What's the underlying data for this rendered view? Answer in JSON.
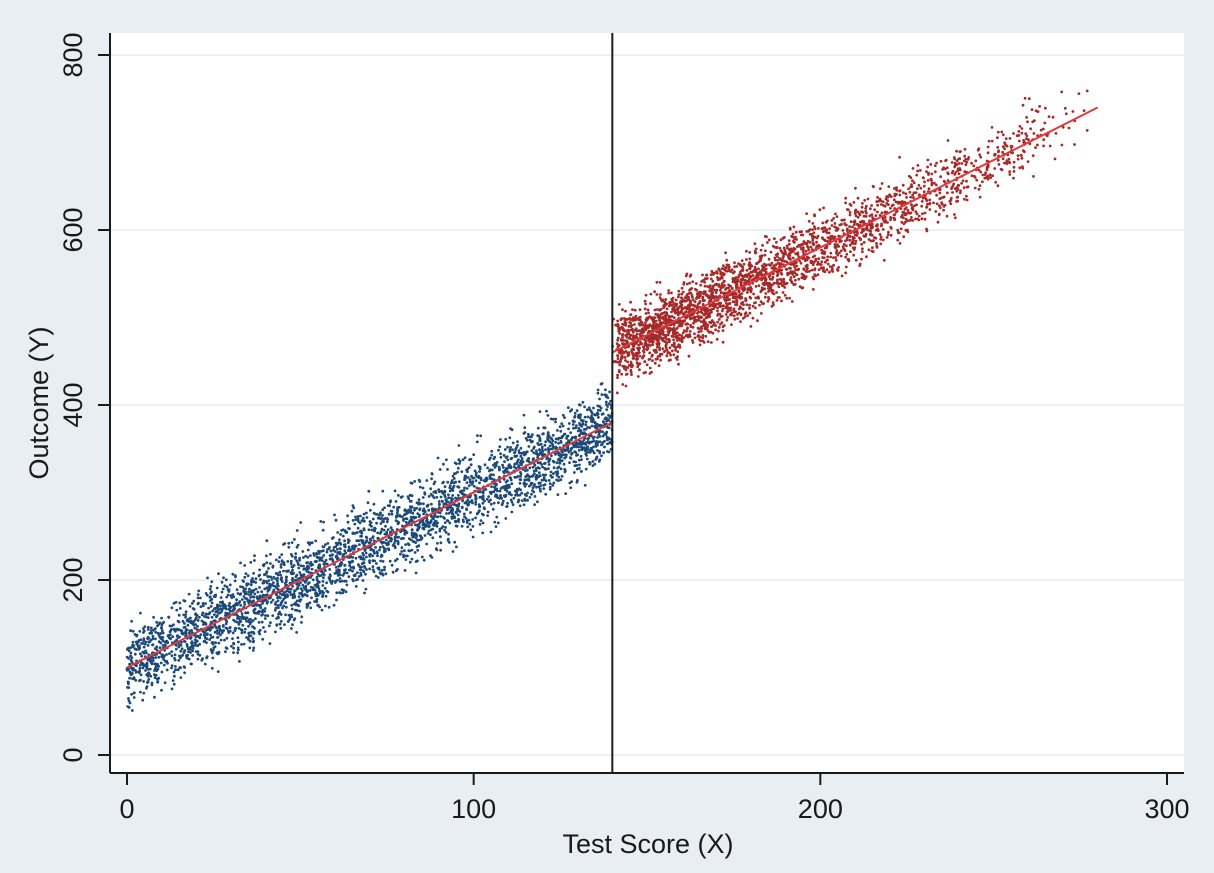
{
  "chart_data": {
    "type": "scatter",
    "title": "",
    "xlabel": "Test Score (X)",
    "ylabel": "Outcome (Y)",
    "xlim": [
      0,
      300
    ],
    "ylim": [
      0,
      800
    ],
    "x_ticks": [
      0,
      100,
      200,
      300
    ],
    "y_ticks": [
      0,
      200,
      400,
      600,
      800
    ],
    "grid": "horizontal",
    "cutoff_x": 140,
    "series": [
      {
        "color": "#1d4a78",
        "x_range": [
          0,
          140
        ],
        "points": [
          [
            0,
            100
          ],
          [
            10,
            120
          ],
          [
            20,
            140
          ],
          [
            30,
            160
          ],
          [
            40,
            180
          ],
          [
            50,
            200
          ],
          [
            60,
            220
          ],
          [
            70,
            240
          ],
          [
            80,
            260
          ],
          [
            90,
            280
          ],
          [
            100,
            300
          ],
          [
            110,
            320
          ],
          [
            120,
            340
          ],
          [
            130,
            360
          ],
          [
            140,
            380
          ]
        ],
        "spread": 40
      },
      {
        "color": "#a52a2a",
        "x_range": [
          140,
          280
        ],
        "points": [
          [
            140,
            460
          ],
          [
            160,
            500
          ],
          [
            180,
            540
          ],
          [
            200,
            580
          ],
          [
            220,
            620
          ],
          [
            240,
            660
          ],
          [
            260,
            700
          ],
          [
            280,
            740
          ]
        ],
        "spread": 35
      }
    ],
    "fit_lines": [
      {
        "color": "#e03a3a",
        "points": [
          [
            0,
            100
          ],
          [
            140,
            380
          ]
        ]
      },
      {
        "color": "#e03a3a",
        "points": [
          [
            140,
            460
          ],
          [
            280,
            740
          ]
        ]
      }
    ]
  },
  "colors": {
    "background": "#e9eef2",
    "plot_area": "#ffffff",
    "gridline": "#e6ebef",
    "cutoff_line": "#1a1a1a"
  }
}
